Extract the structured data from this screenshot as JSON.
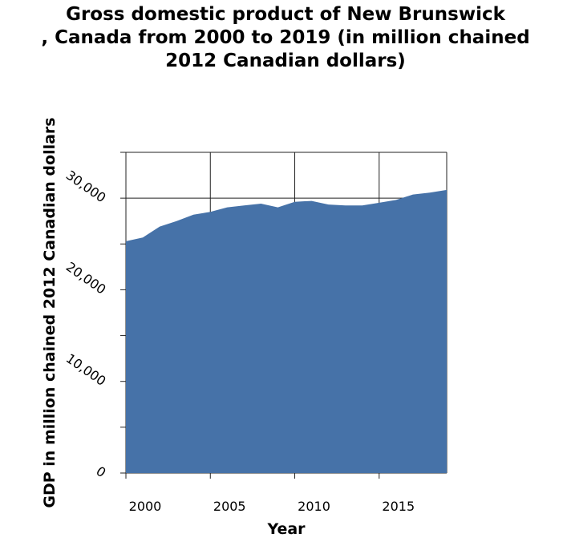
{
  "chart_data": {
    "type": "area",
    "title_lines": [
      "Gross domestic product of New Brunswick",
      ", Canada from 2000 to 2019 (in million chained",
      "2012 Canadian dollars)"
    ],
    "xlabel": "Year",
    "ylabel": "GDP in million chained 2012 Canadian dollars",
    "x": [
      2000,
      2001,
      2002,
      2003,
      2004,
      2005,
      2006,
      2007,
      2008,
      2009,
      2010,
      2011,
      2012,
      2013,
      2014,
      2015,
      2016,
      2017,
      2018,
      2019
    ],
    "series": [
      {
        "values": [
          25300,
          25700,
          26900,
          27500,
          28200,
          28500,
          29000,
          29200,
          29400,
          29000,
          29600,
          29700,
          29300,
          29200,
          29200,
          29500,
          29800,
          30400,
          30600,
          30900
        ]
      }
    ],
    "xlim": [
      2000,
      2019
    ],
    "ylim": [
      0,
      35000
    ],
    "x_ticks": [
      "2000",
      "2005",
      "2010",
      "2015"
    ],
    "y_ticks": [
      "0",
      "10,000",
      "20,000",
      "30,000"
    ],
    "grid": true,
    "fill_color": "#4672a8"
  }
}
